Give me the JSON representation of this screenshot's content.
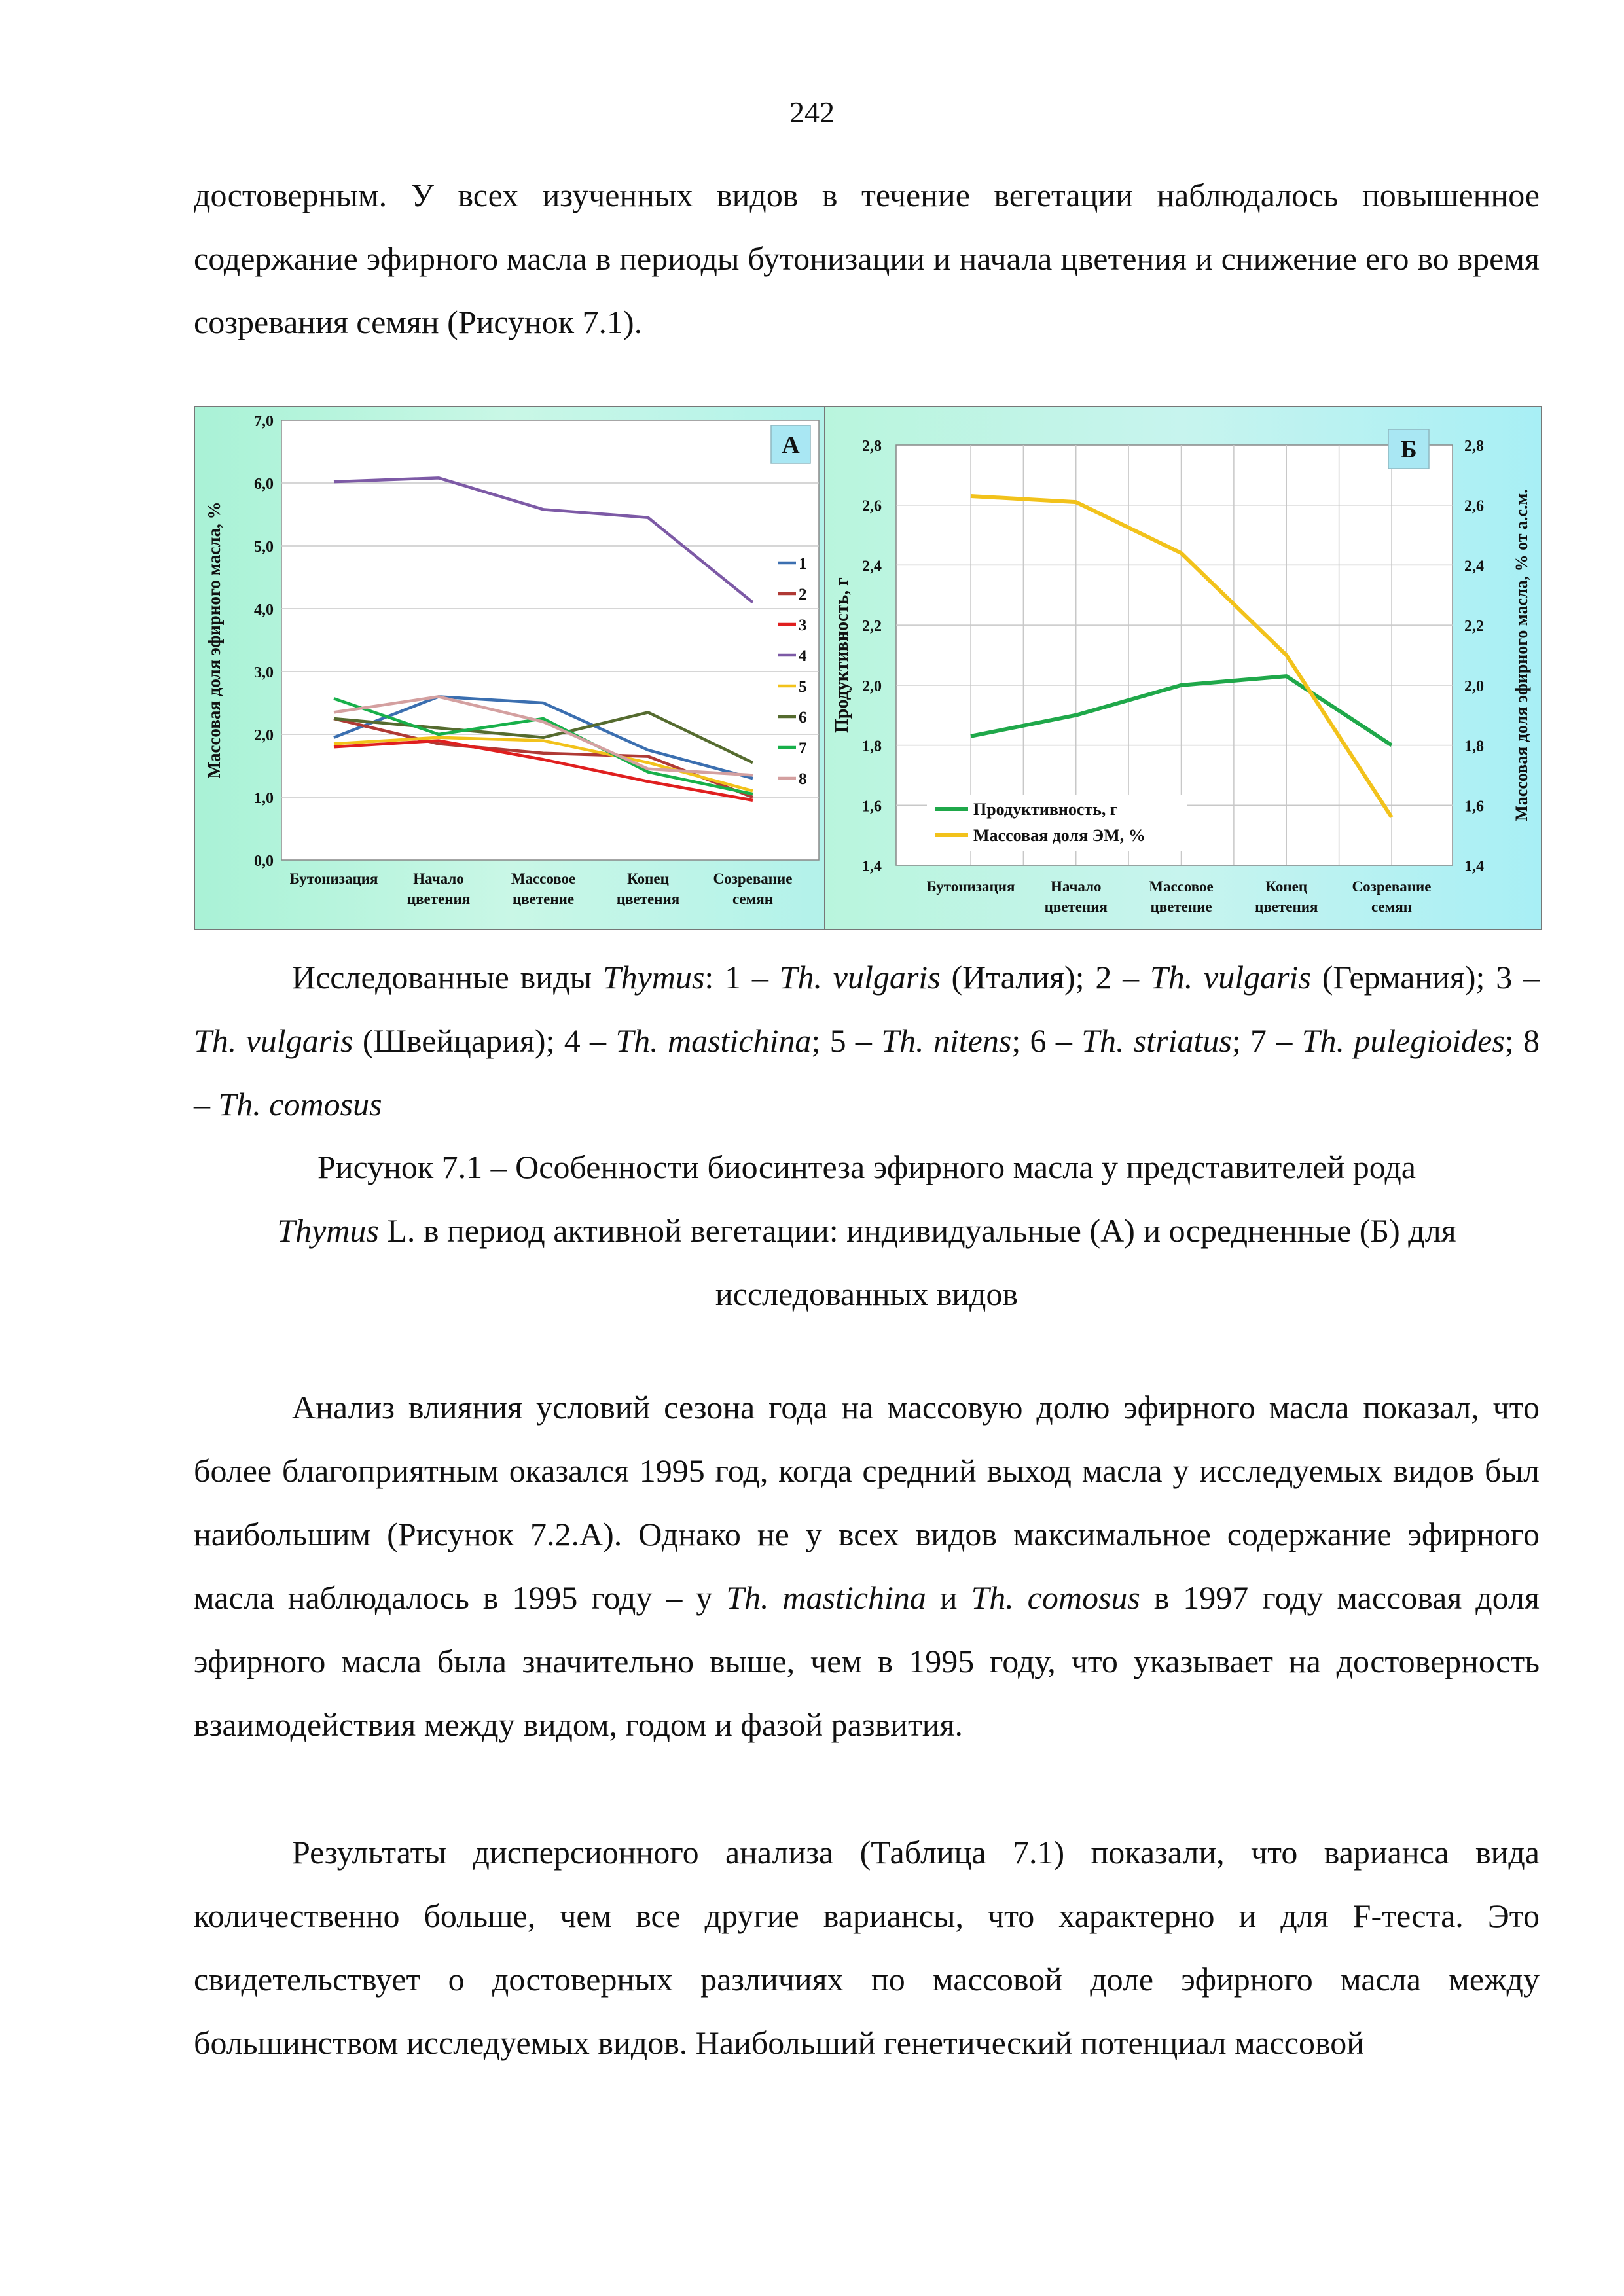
{
  "page_number": "242",
  "para1": "достоверным. У всех изученных видов в течение вегетации наблюдалось повышенное содержание эфирного масла в периоды бутонизации и начала цветения и снижение его во время созревания семян (Рисунок 7.1).",
  "species_caption": [
    {
      "t": "Исследованные виды ",
      "i": false
    },
    {
      "t": "Thymus",
      "i": true
    },
    {
      "t": ": 1 – ",
      "i": false
    },
    {
      "t": "Th. vulgaris",
      "i": true
    },
    {
      "t": " (Италия); 2 – ",
      "i": false
    },
    {
      "t": "Th. vulgaris",
      "i": true
    },
    {
      "t": " (Германия); 3 – ",
      "i": false
    },
    {
      "t": "Th. vulgaris",
      "i": true
    },
    {
      "t": " (Швейцария); 4 – ",
      "i": false
    },
    {
      "t": "Th. mastichina",
      "i": true
    },
    {
      "t": "; 5 – ",
      "i": false
    },
    {
      "t": "Th. nitens",
      "i": true
    },
    {
      "t": "; 6 – ",
      "i": false
    },
    {
      "t": "Th. striatus",
      "i": true
    },
    {
      "t": "; 7 – ",
      "i": false
    },
    {
      "t": "Th. pulegioides",
      "i": true
    },
    {
      "t": "; 8 – ",
      "i": false
    },
    {
      "t": "Th. comosus",
      "i": true
    }
  ],
  "figure_caption_line1": "Рисунок 7.1 – Особенности биосинтеза эфирного масла у представителей рода",
  "figure_caption_line2_italic": "Thymus",
  "figure_caption_line2_rest": " L. в период активной вегетации: индивидуальные (А) и осредненные (Б) для",
  "figure_caption_line3": "исследованных видов",
  "para2": [
    {
      "t": "Анализ влияния условий сезона года на массовую долю эфирного масла показал, что более благоприятным оказался 1995 год, когда средний выход масла у исследуемых видов был наибольшим (Рисунок 7.2.А). Однако не у всех видов максимальное содержание эфирного масла наблюдалось в 1995 году – у ",
      "i": false
    },
    {
      "t": "Th. mastichina",
      "i": true
    },
    {
      "t": " и ",
      "i": false
    },
    {
      "t": "Th. comosus",
      "i": true
    },
    {
      "t": " в 1997 году массовая доля эфирного масла была значительно выше, чем в 1995 году, что указывает на достоверность взаимодействия между видом, годом и фазой развития.",
      "i": false
    }
  ],
  "para3": "Результаты дисперсионного анализа (Таблица 7.1) показали, что варианса вида количественно больше, чем все другие вариансы, что характерно и для F-теста. Это свидетельствует о достоверных различиях по массовой доле эфирного масла между большинством исследуемых видов. Наибольший генетический потенциал массовой",
  "chart_data": [
    {
      "type": "line",
      "panel_label": "А",
      "ylabel": "Массовая доля эфирного масла, %",
      "ylim": [
        0,
        7
      ],
      "yticks": [
        "0,0",
        "1,0",
        "2,0",
        "3,0",
        "4,0",
        "5,0",
        "6,0",
        "7,0"
      ],
      "categories": [
        [
          "Бутонизация"
        ],
        [
          "Начало",
          "цветения"
        ],
        [
          "Массовое",
          "цветение"
        ],
        [
          "Конец",
          "цветения"
        ],
        [
          "Созревание",
          "семян"
        ]
      ],
      "series": [
        {
          "name": "1",
          "color": "#3b6fb0",
          "values": [
            1.95,
            2.6,
            2.5,
            1.75,
            1.3
          ]
        },
        {
          "name": "2",
          "color": "#b03a35",
          "values": [
            2.25,
            1.85,
            1.7,
            1.65,
            1.0
          ]
        },
        {
          "name": "3",
          "color": "#e01f1f",
          "values": [
            1.8,
            1.9,
            1.6,
            1.25,
            0.95
          ]
        },
        {
          "name": "4",
          "color": "#7d5aa6",
          "values": [
            6.02,
            6.08,
            5.58,
            5.45,
            4.1
          ]
        },
        {
          "name": "5",
          "color": "#f2c21b",
          "values": [
            1.85,
            1.95,
            1.9,
            1.55,
            1.1
          ]
        },
        {
          "name": "6",
          "color": "#556b2f",
          "values": [
            2.25,
            2.1,
            1.95,
            2.35,
            1.55
          ]
        },
        {
          "name": "7",
          "color": "#18b04a",
          "values": [
            2.57,
            2.0,
            2.25,
            1.4,
            1.05
          ]
        },
        {
          "name": "8",
          "color": "#d4a0a0",
          "values": [
            2.35,
            2.6,
            2.2,
            1.45,
            1.35
          ]
        }
      ],
      "legend_position": "right"
    },
    {
      "type": "line",
      "panel_label": "Б",
      "ylabel": "Продуктивность, г",
      "ylabel_right": "Массовая доля эфирного масла, % от а.с.м.",
      "ylim": [
        1.4,
        2.8
      ],
      "yticks": [
        "1,4",
        "1,6",
        "1,8",
        "2,0",
        "2,2",
        "2,4",
        "2,6",
        "2,8"
      ],
      "categories": [
        [
          "Бутонизация"
        ],
        [
          "Начало",
          "цветения"
        ],
        [
          "Массовое",
          "цветение"
        ],
        [
          "Конец",
          "цветения"
        ],
        [
          "Созревание",
          "семян"
        ]
      ],
      "series": [
        {
          "name": "Продуктивность, г",
          "color": "#1fa84a",
          "values": [
            1.83,
            1.9,
            2.0,
            2.03,
            1.8
          ]
        },
        {
          "name": "Массовая доля ЭМ, %",
          "color": "#f2c21b",
          "values": [
            2.63,
            2.61,
            2.44,
            2.1,
            1.56
          ]
        }
      ],
      "grid": true,
      "legend_position": "bottom-left"
    }
  ]
}
